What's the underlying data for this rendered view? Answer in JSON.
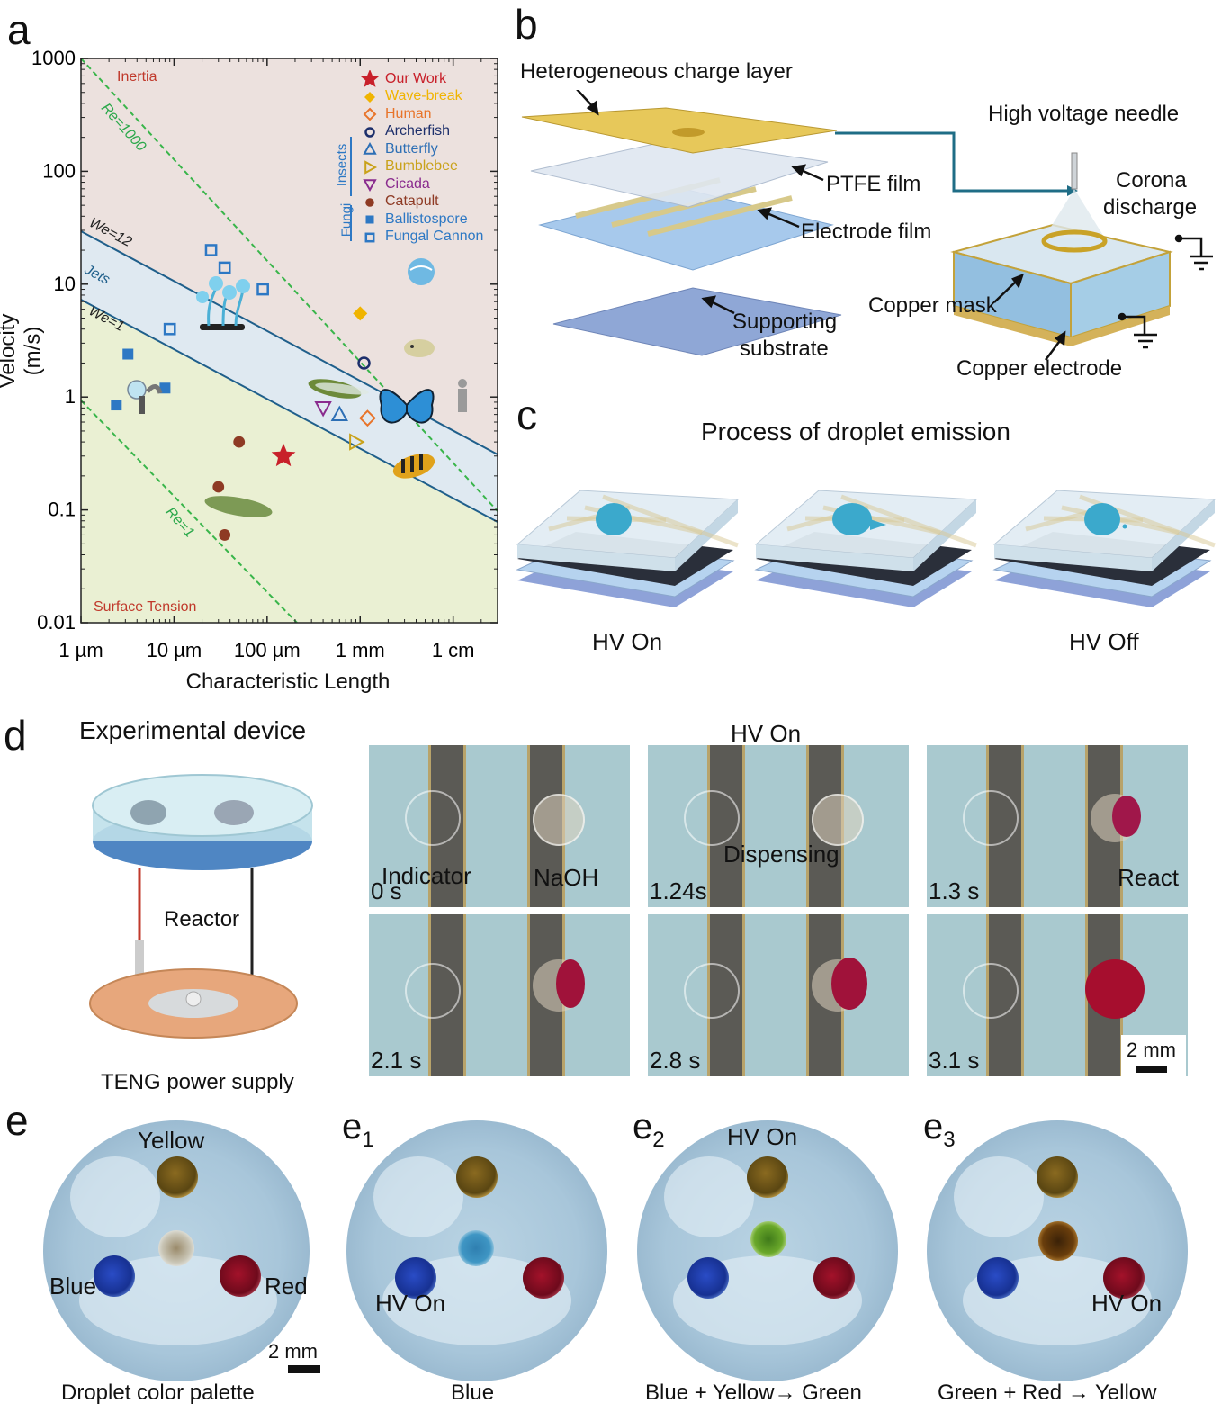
{
  "panel_labels": {
    "a": "a",
    "b": "b",
    "c": "c",
    "d": "d",
    "e": "e",
    "e1": "e",
    "e1_sub": "1",
    "e2": "e",
    "e2_sub": "2",
    "e3": "e",
    "e3_sub": "3"
  },
  "chart_data": {
    "type": "scatter",
    "xlabel": "Characteristic Length",
    "ylabel": "Velocity (m/s)",
    "x_scale": "log",
    "y_scale": "log",
    "xlim": [
      "1 µm",
      "3 cm"
    ],
    "ylim": [
      0.01,
      1000
    ],
    "x_tick_labels": [
      "1 µm",
      "10 µm",
      "100 µm",
      "1 mm",
      "1 cm"
    ],
    "y_tick_labels": [
      "1000",
      "100",
      "10",
      "1",
      "0.1",
      "0.01"
    ],
    "region_labels": {
      "inertia": "Inertia",
      "jets": "Jets",
      "surface_tension": "Surface Tension"
    },
    "line_labels": {
      "re1000": "Re=1000",
      "re1": "Re=1",
      "we12": "We=12",
      "we1": "We=1"
    },
    "legend": {
      "placement": "top-right",
      "entries": [
        {
          "name": "Our Work",
          "marker": "star",
          "color": "#c8202a"
        },
        {
          "name": "Wave-break",
          "marker": "diamond",
          "color": "#f0b400"
        },
        {
          "name": "Human",
          "marker": "diamond-open",
          "color": "#e8742a"
        },
        {
          "name": "Archerfish",
          "marker": "circle-open",
          "color": "#1d2f6b"
        },
        {
          "name": "Butterfly",
          "marker": "triangle-open",
          "color": "#2d6fb5"
        },
        {
          "name": "Bumblebee",
          "marker": "triangle-right-open",
          "color": "#c9a21a"
        },
        {
          "name": "Cicada",
          "marker": "triangle-down-open",
          "color": "#8a2b8e"
        },
        {
          "name": "Catapult",
          "marker": "circle",
          "color": "#8e3a24"
        },
        {
          "name": "Ballistospore",
          "marker": "square",
          "color": "#2d78c4"
        },
        {
          "name": "Fungal Cannon",
          "marker": "square-open",
          "color": "#2d78c4"
        }
      ],
      "group_insects": "Insects",
      "group_fungi": "Fungi"
    },
    "series": [
      {
        "name": "Our Work",
        "points": [
          [
            0.00015,
            0.3
          ]
        ]
      },
      {
        "name": "Wave-break",
        "points": [
          [
            0.001,
            5.5
          ]
        ]
      },
      {
        "name": "Human",
        "points": [
          [
            0.0012,
            0.65
          ]
        ]
      },
      {
        "name": "Archerfish",
        "points": [
          [
            0.0011,
            2.0
          ]
        ]
      },
      {
        "name": "Butterfly",
        "points": [
          [
            0.0006,
            0.7
          ]
        ]
      },
      {
        "name": "Bumblebee",
        "points": [
          [
            0.0009,
            0.4
          ]
        ]
      },
      {
        "name": "Cicada",
        "points": [
          [
            0.0004,
            0.8
          ]
        ]
      },
      {
        "name": "Catapult",
        "points": [
          [
            5e-05,
            0.4
          ],
          [
            3e-05,
            0.16
          ],
          [
            3.5e-05,
            0.06
          ]
        ]
      },
      {
        "name": "Ballistospore",
        "points": [
          [
            3.2e-06,
            2.4
          ],
          [
            2.4e-06,
            0.85
          ],
          [
            8e-06,
            1.2
          ]
        ]
      },
      {
        "name": "Fungal Cannon",
        "points": [
          [
            2.5e-05,
            20
          ],
          [
            3.5e-05,
            14
          ],
          [
            9e-05,
            9
          ],
          [
            9e-06,
            4
          ]
        ]
      }
    ]
  },
  "panel_b": {
    "heterogeneous_charge_layer": "Heterogeneous charge layer",
    "ptfe_film": "PTFE film",
    "electrode_film": "Electrode film",
    "supporting_substrate_1": "Supporting",
    "supporting_substrate_2": "substrate",
    "high_voltage_needle": "High voltage needle",
    "corona_1": "Corona",
    "corona_2": "discharge",
    "copper_mask": "Copper mask",
    "copper_electrode": "Copper electrode"
  },
  "panel_c": {
    "title": "Process of droplet emission",
    "hv_on": "HV On",
    "hv_off": "HV Off"
  },
  "panel_d": {
    "title": "Experimental device",
    "reactor": "Reactor",
    "teng": "TENG power supply",
    "hv_on": "HV On",
    "frames": [
      {
        "time": "0 s",
        "labels": [
          "Indicator",
          "NaOH"
        ]
      },
      {
        "time": "1.24s",
        "labels": [
          "Dispensing"
        ]
      },
      {
        "time": "1.3 s",
        "labels": [
          "React"
        ]
      },
      {
        "time": "2.1 s",
        "labels": []
      },
      {
        "time": "2.8 s",
        "labels": []
      },
      {
        "time": "3.1 s",
        "labels": []
      }
    ],
    "scale_bar": "2 mm"
  },
  "panel_e": {
    "dishes": [
      {
        "caption": "Droplet color palette",
        "labels": {
          "top": "Yellow",
          "left": "Blue",
          "right": "Red"
        },
        "scale": "2 mm"
      },
      {
        "caption": "Blue",
        "labels": {
          "hv": "HV On"
        }
      },
      {
        "caption": "Blue + Yellow→ Green",
        "labels": {
          "hv": "HV On"
        }
      },
      {
        "caption": "Green  + Red → Yellow",
        "labels": {
          "hv": "HV On"
        }
      }
    ]
  }
}
